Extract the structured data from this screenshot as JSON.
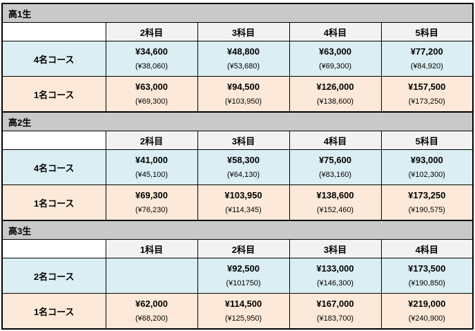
{
  "colors": {
    "gray": "#c9c9c9",
    "headbg": "#f2f2f2",
    "blue": "#daeef3",
    "peach": "#fde9d9",
    "line": "#000000"
  },
  "sections": [
    {
      "title": "高1生",
      "columns": [
        "2科目",
        "3科目",
        "4科目",
        "5科目"
      ],
      "rows": [
        {
          "label": "4名コース",
          "cells": [
            {
              "main": "¥34,600",
              "sub": "(¥38,060)"
            },
            {
              "main": "¥48,800",
              "sub": "(¥53,680)"
            },
            {
              "main": "¥63,000",
              "sub": "(¥69,300)"
            },
            {
              "main": "¥77,200",
              "sub": "(¥84,920)"
            }
          ]
        },
        {
          "label": "1名コース",
          "cells": [
            {
              "main": "¥63,000",
              "sub": "(¥69,300)"
            },
            {
              "main": "¥94,500",
              "sub": "(¥103,950)"
            },
            {
              "main": "¥126,000",
              "sub": "(¥138,600)"
            },
            {
              "main": "¥157,500",
              "sub": "(¥173,250)"
            }
          ]
        }
      ]
    },
    {
      "title": "高2生",
      "columns": [
        "2科目",
        "3科目",
        "4科目",
        "5科目"
      ],
      "rows": [
        {
          "label": "4名コース",
          "cells": [
            {
              "main": "¥41,000",
              "sub": "(¥45,100)"
            },
            {
              "main": "¥58,300",
              "sub": "(¥64,130)"
            },
            {
              "main": "¥75,600",
              "sub": "(¥83,160)"
            },
            {
              "main": "¥93,000",
              "sub": "(¥102,300)"
            }
          ]
        },
        {
          "label": "1名コース",
          "cells": [
            {
              "main": "¥69,300",
              "sub": "(¥76,230)"
            },
            {
              "main": "¥103,950",
              "sub": "(¥114,345)"
            },
            {
              "main": "¥138,600",
              "sub": "(¥152,460)"
            },
            {
              "main": "¥173,250",
              "sub": "(¥190,575)"
            }
          ]
        }
      ]
    },
    {
      "title": "高3生",
      "columns": [
        "1科目",
        "2科目",
        "3科目",
        "4科目"
      ],
      "rows": [
        {
          "label": "2名コース",
          "cells": [
            {
              "main": "",
              "sub": ""
            },
            {
              "main": "¥92,500",
              "sub": "(¥101750)"
            },
            {
              "main": "¥133,000",
              "sub": "(¥146,300)"
            },
            {
              "main": "¥173,500",
              "sub": "(¥190,850)"
            }
          ]
        },
        {
          "label": "1名コース",
          "cells": [
            {
              "main": "¥62,000",
              "sub": "(¥68,200)"
            },
            {
              "main": "¥114,500",
              "sub": "(¥125,950)"
            },
            {
              "main": "¥167,000",
              "sub": "(¥183,700)"
            },
            {
              "main": "¥219,000",
              "sub": "(¥240,900)"
            }
          ]
        }
      ]
    }
  ]
}
